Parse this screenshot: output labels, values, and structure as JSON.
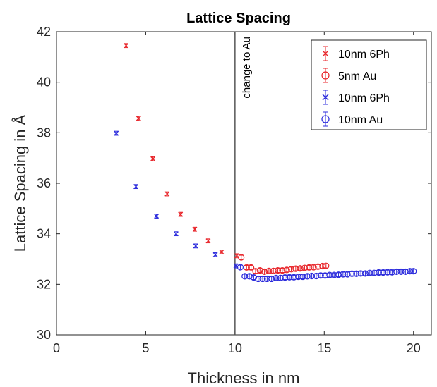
{
  "chart_data": {
    "type": "scatter",
    "title": "Lattice Spacing",
    "xlabel": "Thickness in nm",
    "ylabel": "Lattice Spacing in Å",
    "xlim": [
      0,
      21
    ],
    "ylim": [
      30,
      42
    ],
    "xticks": [
      "0",
      "5",
      "10",
      "15",
      "20"
    ],
    "yticks": [
      "30",
      "32",
      "34",
      "36",
      "38",
      "40",
      "42"
    ],
    "grid": false,
    "legend_position": "top-right",
    "annotation": {
      "text": "change to Au",
      "x": 10
    },
    "series": [
      {
        "name": "10nm 6Ph",
        "marker": "x",
        "color": "#e8262b",
        "error": 0.08,
        "points": [
          [
            3.9,
            41.45
          ],
          [
            4.6,
            38.57
          ],
          [
            5.4,
            36.97
          ],
          [
            6.2,
            35.58
          ],
          [
            6.95,
            34.77
          ],
          [
            7.75,
            34.18
          ],
          [
            8.5,
            33.72
          ],
          [
            9.25,
            33.28
          ],
          [
            10.1,
            33.13
          ]
        ]
      },
      {
        "name": "5nm Au",
        "marker": "o",
        "color": "#e8262b",
        "error": 0.08,
        "points": [
          [
            10.35,
            33.07
          ],
          [
            10.65,
            32.67
          ],
          [
            10.9,
            32.67
          ],
          [
            11.15,
            32.52
          ],
          [
            11.4,
            32.55
          ],
          [
            11.65,
            32.5
          ],
          [
            11.9,
            32.53
          ],
          [
            12.15,
            32.53
          ],
          [
            12.4,
            32.55
          ],
          [
            12.65,
            32.55
          ],
          [
            12.9,
            32.57
          ],
          [
            13.15,
            32.6
          ],
          [
            13.4,
            32.62
          ],
          [
            13.65,
            32.63
          ],
          [
            13.9,
            32.65
          ],
          [
            14.15,
            32.67
          ],
          [
            14.4,
            32.68
          ],
          [
            14.65,
            32.7
          ],
          [
            14.9,
            32.72
          ],
          [
            15.1,
            32.73
          ]
        ]
      },
      {
        "name": "10nm 6Ph",
        "marker": "x",
        "color": "#2b2bdc",
        "error": 0.08,
        "points": [
          [
            3.35,
            37.98
          ],
          [
            4.45,
            35.87
          ],
          [
            5.6,
            34.7
          ],
          [
            6.7,
            34.0
          ],
          [
            7.8,
            33.52
          ],
          [
            8.9,
            33.17
          ],
          [
            10.05,
            32.73
          ]
        ]
      },
      {
        "name": "10nm Au",
        "marker": "o",
        "color": "#2b2bdc",
        "error": 0.08,
        "points": [
          [
            10.3,
            32.68
          ],
          [
            10.55,
            32.32
          ],
          [
            10.8,
            32.32
          ],
          [
            11.05,
            32.27
          ],
          [
            11.3,
            32.22
          ],
          [
            11.55,
            32.22
          ],
          [
            11.8,
            32.22
          ],
          [
            12.05,
            32.22
          ],
          [
            12.3,
            32.25
          ],
          [
            12.55,
            32.25
          ],
          [
            12.8,
            32.27
          ],
          [
            13.05,
            32.28
          ],
          [
            13.3,
            32.28
          ],
          [
            13.55,
            32.3
          ],
          [
            13.8,
            32.3
          ],
          [
            14.05,
            32.32
          ],
          [
            14.3,
            32.33
          ],
          [
            14.55,
            32.33
          ],
          [
            14.8,
            32.35
          ],
          [
            15.05,
            32.35
          ],
          [
            15.3,
            32.37
          ],
          [
            15.55,
            32.37
          ],
          [
            15.8,
            32.38
          ],
          [
            16.05,
            32.4
          ],
          [
            16.3,
            32.4
          ],
          [
            16.55,
            32.42
          ],
          [
            16.8,
            32.42
          ],
          [
            17.05,
            32.43
          ],
          [
            17.3,
            32.43
          ],
          [
            17.55,
            32.45
          ],
          [
            17.8,
            32.45
          ],
          [
            18.05,
            32.47
          ],
          [
            18.3,
            32.47
          ],
          [
            18.55,
            32.48
          ],
          [
            18.8,
            32.48
          ],
          [
            19.05,
            32.5
          ],
          [
            19.3,
            32.5
          ],
          [
            19.55,
            32.5
          ],
          [
            19.8,
            32.52
          ],
          [
            20.0,
            32.52
          ]
        ]
      }
    ]
  }
}
